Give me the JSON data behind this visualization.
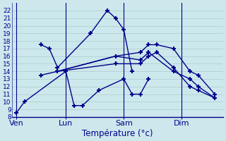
{
  "title": "Température (°c)",
  "bg_color": "#cce8ec",
  "grid_color": "#aacccc",
  "line_color": "#00008b",
  "ylim": [
    8,
    23
  ],
  "yticks": [
    8,
    9,
    10,
    11,
    12,
    13,
    14,
    15,
    16,
    17,
    18,
    19,
    20,
    21,
    22
  ],
  "xtick_labels": [
    "Ven",
    "Lun",
    "Sam",
    "Dim"
  ],
  "xtick_positions": [
    0,
    6,
    13,
    20
  ],
  "xlim": [
    -0.5,
    25
  ],
  "lines": [
    {
      "x": [
        0,
        1,
        6,
        7,
        8,
        10,
        13,
        14,
        15,
        16
      ],
      "y": [
        8.5,
        10,
        14,
        9.5,
        9.5,
        11.5,
        13,
        11,
        11,
        13
      ]
    },
    {
      "x": [
        3,
        4,
        5,
        9,
        11,
        12,
        13,
        14
      ],
      "y": [
        17.5,
        17,
        14.5,
        19,
        22,
        21,
        19.5,
        14
      ]
    },
    {
      "x": [
        5,
        12,
        15,
        16,
        17,
        19,
        21,
        22,
        24
      ],
      "y": [
        14,
        16,
        16.5,
        17.5,
        17.5,
        17,
        14,
        13.5,
        11
      ]
    },
    {
      "x": [
        5,
        12,
        15,
        16,
        17,
        19,
        21,
        22,
        24
      ],
      "y": [
        14,
        15,
        15,
        16,
        16.5,
        14.5,
        12,
        11.5,
        10.5
      ]
    },
    {
      "x": [
        3,
        5,
        12,
        15,
        16,
        19,
        21,
        22,
        24
      ],
      "y": [
        13.5,
        14,
        16,
        15.5,
        16.5,
        14,
        13,
        12,
        10.5
      ]
    }
  ],
  "vlines_x": [
    0,
    6,
    13,
    20
  ],
  "marker": "+",
  "markersize": 5,
  "linewidth": 1.0
}
